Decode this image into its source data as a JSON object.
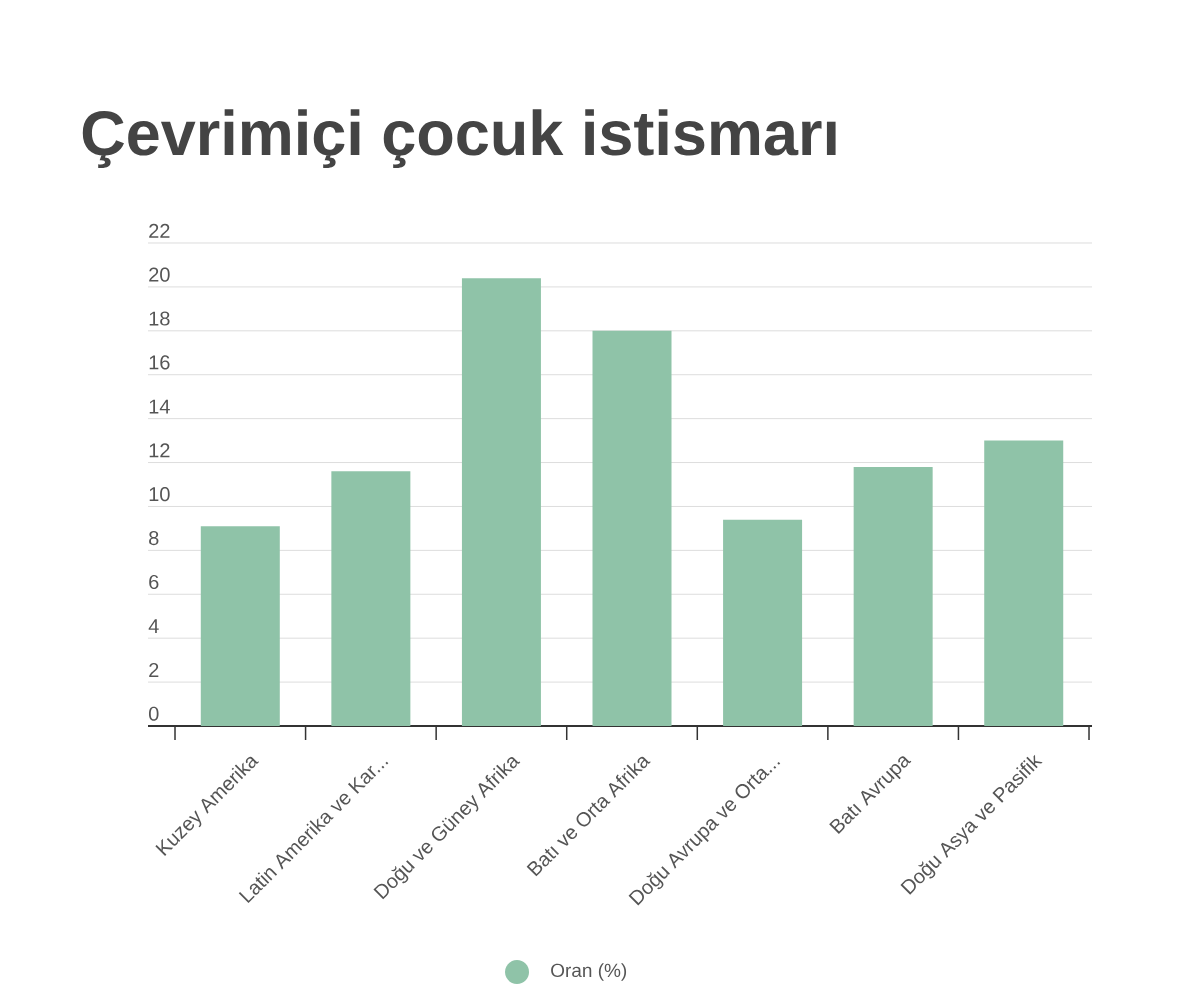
{
  "chart_data": {
    "type": "bar",
    "title": "Çevrimiçi çocuk istismarı",
    "categories": [
      "Kuzey Amerika",
      "Latin Amerika ve Kar...",
      "Doğu ve Güney Afrika",
      "Batı ve Orta Afrika",
      "Doğu Avrupa ve Orta...",
      "Batı Avrupa",
      "Doğu Asya ve Pasifik"
    ],
    "series": [
      {
        "name": "Oran (%)",
        "color": "#8fc3a8",
        "values": [
          9.1,
          11.6,
          20.4,
          18.0,
          9.4,
          11.8,
          13.0
        ]
      }
    ],
    "ylim": [
      0,
      22
    ],
    "yticks": [
      0,
      2,
      4,
      6,
      8,
      10,
      12,
      14,
      16,
      18,
      20,
      22
    ],
    "grid": "y",
    "legend": "bottom"
  }
}
